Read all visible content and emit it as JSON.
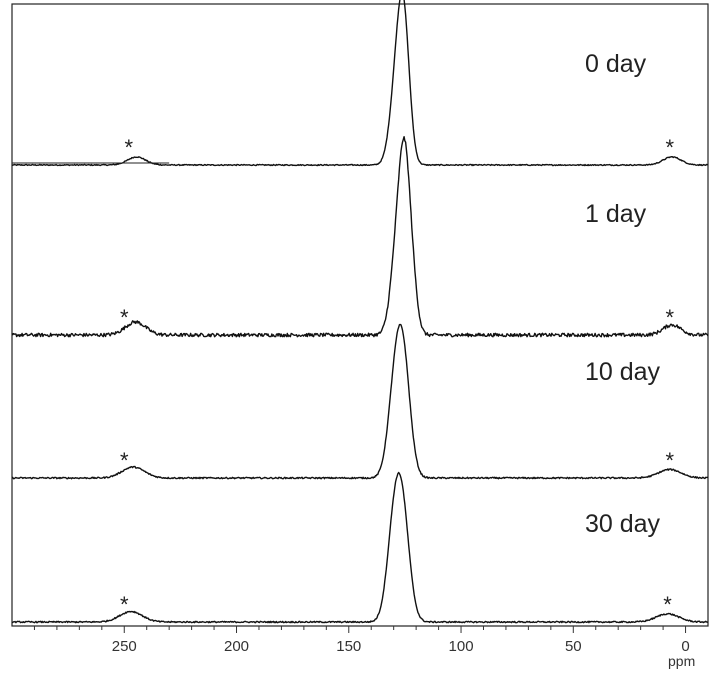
{
  "chart_data": {
    "type": "line",
    "title": "",
    "xlabel": "ppm",
    "ylabel": "",
    "xlim": [
      300,
      -10
    ],
    "x_reversed": true,
    "x_ticks": [
      250,
      200,
      150,
      100,
      50,
      0
    ],
    "x_tick_labels": [
      "250",
      "200",
      "150",
      "100",
      "50",
      "0"
    ],
    "x_minor_tick_step": 10,
    "grid": false,
    "legend": "none",
    "line_color": "#111111",
    "spinning_sideband_marker": "*",
    "series": [
      {
        "name": "0 day",
        "peaks": [
          {
            "center": 125.5,
            "height": 1.0,
            "width": 2.6
          },
          {
            "center": 129.0,
            "height": 0.52,
            "width": 2.8
          },
          {
            "center": 244.5,
            "height": 0.06,
            "width": 4.0
          },
          {
            "center": 6.0,
            "height": 0.06,
            "width": 4.0
          }
        ],
        "sidebands_ppm": [
          248,
          7
        ],
        "noise": 0.004
      },
      {
        "name": "1 day",
        "peaks": [
          {
            "center": 125.0,
            "height": 1.0,
            "width": 2.4
          },
          {
            "center": 128.5,
            "height": 0.58,
            "width": 2.8
          },
          {
            "center": 121.5,
            "height": 0.28,
            "width": 2.2
          },
          {
            "center": 245.0,
            "height": 0.09,
            "width": 4.5
          },
          {
            "center": 6.0,
            "height": 0.07,
            "width": 4.0
          }
        ],
        "sidebands_ppm": [
          250,
          7
        ],
        "noise": 0.012
      },
      {
        "name": "10 day",
        "peaks": [
          {
            "center": 126.0,
            "height": 1.0,
            "width": 3.2
          },
          {
            "center": 130.0,
            "height": 0.5,
            "width": 3.0
          },
          {
            "center": 246.0,
            "height": 0.09,
            "width": 5.0
          },
          {
            "center": 7.0,
            "height": 0.07,
            "width": 5.0
          }
        ],
        "sidebands_ppm": [
          250,
          7
        ],
        "noise": 0.006
      },
      {
        "name": "30 day",
        "peaks": [
          {
            "center": 126.5,
            "height": 1.0,
            "width": 3.3
          },
          {
            "center": 130.5,
            "height": 0.52,
            "width": 3.0
          },
          {
            "center": 247.0,
            "height": 0.09,
            "width": 5.0
          },
          {
            "center": 8.0,
            "height": 0.07,
            "width": 5.0
          }
        ],
        "sidebands_ppm": [
          250,
          8
        ],
        "noise": 0.006
      }
    ]
  }
}
